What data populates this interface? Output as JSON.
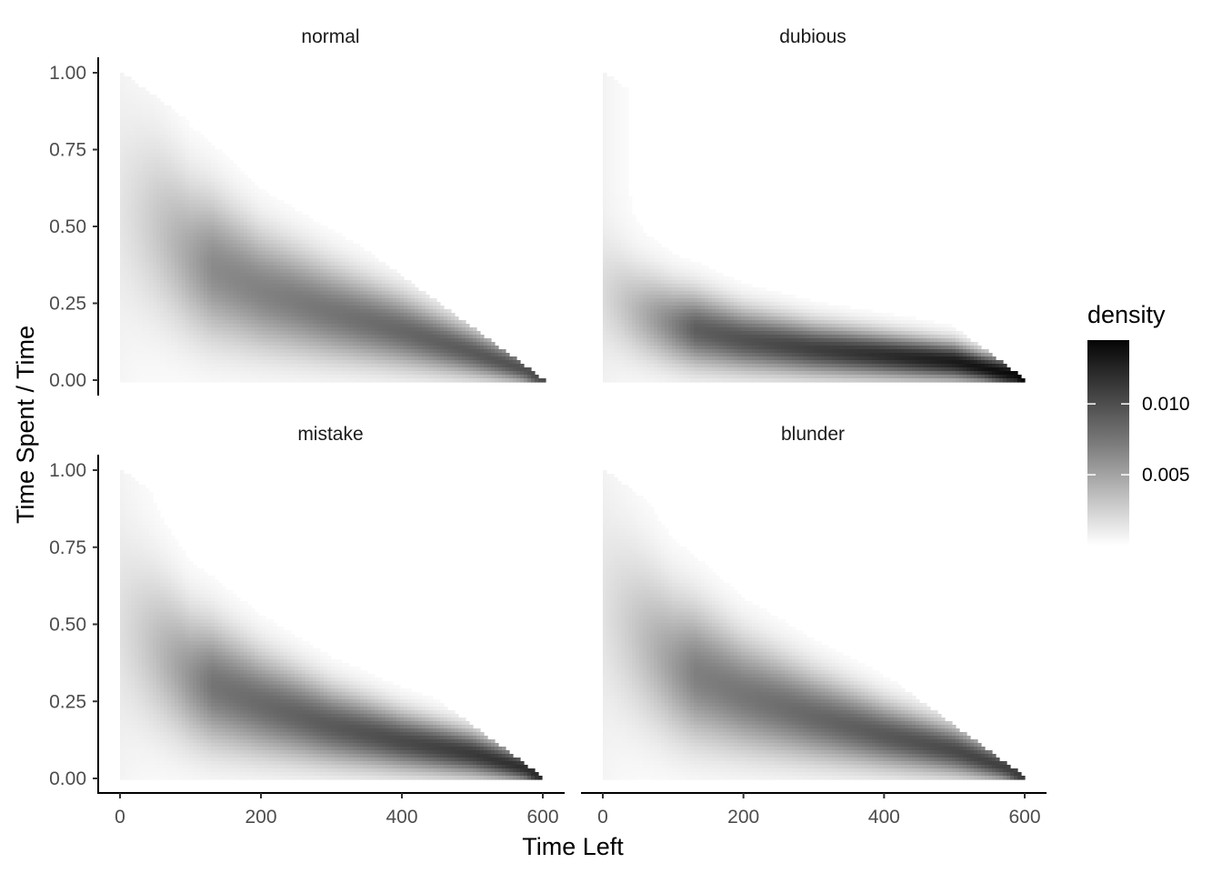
{
  "chart_data": {
    "type": "heatmap",
    "xlabel": "Time Left",
    "ylabel": "Time Spent / Time",
    "x_range": [
      0,
      600
    ],
    "y_range": [
      0,
      1
    ],
    "x_ticks": [
      "0",
      "200",
      "400",
      "600"
    ],
    "y_ticks": [
      "0.00",
      "0.25",
      "0.50",
      "0.75",
      "1.00"
    ],
    "grid": false,
    "colors": {
      "low": "#ffffff",
      "high": "#000000"
    },
    "legend": {
      "title": "density",
      "position": "right",
      "range": [
        0,
        0.0145
      ],
      "ticks": [
        "0.005",
        "0.010"
      ],
      "tick_values": [
        0.005,
        0.01
      ]
    },
    "facets": [
      {
        "label": "normal",
        "peak_density": 0.0105,
        "ridge": [
          [
            0,
            0.56
          ],
          [
            50,
            0.5
          ],
          [
            100,
            0.4
          ],
          [
            200,
            0.29
          ],
          [
            300,
            0.22
          ],
          [
            400,
            0.16
          ],
          [
            500,
            0.09
          ],
          [
            580,
            0.03
          ]
        ]
      },
      {
        "label": "dubious",
        "peak_density": 0.0145,
        "ridge": [
          [
            0,
            0.28
          ],
          [
            50,
            0.22
          ],
          [
            100,
            0.18
          ],
          [
            200,
            0.13
          ],
          [
            300,
            0.1
          ],
          [
            400,
            0.08
          ],
          [
            500,
            0.06
          ],
          [
            580,
            0.02
          ]
        ]
      },
      {
        "label": "mistake",
        "peak_density": 0.0125,
        "ridge": [
          [
            0,
            0.5
          ],
          [
            50,
            0.42
          ],
          [
            100,
            0.33
          ],
          [
            200,
            0.24
          ],
          [
            300,
            0.17
          ],
          [
            400,
            0.12
          ],
          [
            500,
            0.08
          ],
          [
            580,
            0.03
          ]
        ]
      },
      {
        "label": "blunder",
        "peak_density": 0.0115,
        "ridge": [
          [
            0,
            0.55
          ],
          [
            50,
            0.46
          ],
          [
            100,
            0.37
          ],
          [
            200,
            0.27
          ],
          [
            300,
            0.2
          ],
          [
            400,
            0.14
          ],
          [
            500,
            0.09
          ],
          [
            580,
            0.03
          ]
        ]
      }
    ]
  }
}
